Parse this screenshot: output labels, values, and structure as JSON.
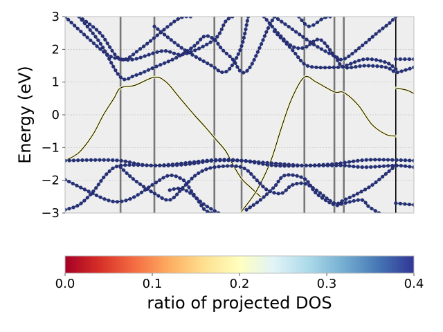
{
  "chart_data": {
    "type": "line",
    "subtype": "band-structure-with-projection",
    "title": "",
    "xlabel": "",
    "ylabel": "Energy (eV)",
    "ylim": [
      -3,
      3
    ],
    "xlim": [
      0,
      1
    ],
    "yticks": [
      -3,
      -2,
      -1,
      0,
      1,
      2,
      3
    ],
    "ytick_labels": [
      "−3",
      "−2",
      "−1",
      "0",
      "1",
      "2",
      "3"
    ],
    "grid": "horizontal dashed",
    "plot_background": "#eeeeee",
    "high_symmetry_x": [
      0.159,
      0.256,
      0.428,
      0.506,
      0.686,
      0.772,
      0.799,
      0.948
    ],
    "discontinuity_x": 0.948,
    "highlight_series": "band-projected-low",
    "series": [
      {
        "id": "c3",
        "points": [
          [
            0.04,
            3.0
          ],
          [
            0.1,
            2.5
          ],
          [
            0.159,
            1.7
          ],
          [
            0.22,
            2.05
          ],
          [
            0.32,
            2.9
          ],
          [
            0.36,
            3.0
          ]
        ]
      },
      {
        "id": "c2",
        "points": [
          [
            0.0,
            3.0
          ],
          [
            0.06,
            2.4
          ],
          [
            0.12,
            1.85
          ],
          [
            0.159,
            1.7
          ],
          [
            0.2,
            1.7
          ],
          [
            0.28,
            1.95
          ],
          [
            0.34,
            1.85
          ],
          [
            0.428,
            2.3
          ],
          [
            0.46,
            2.85
          ],
          [
            0.48,
            3.0
          ]
        ]
      },
      {
        "id": "c1",
        "points": [
          [
            0.04,
            3.0
          ],
          [
            0.1,
            2.2
          ],
          [
            0.159,
            1.15
          ],
          [
            0.2,
            1.2
          ],
          [
            0.256,
            1.45
          ],
          [
            0.32,
            1.75
          ],
          [
            0.37,
            2.1
          ],
          [
            0.4,
            2.4
          ],
          [
            0.428,
            2.3
          ],
          [
            0.45,
            2.0
          ],
          [
            0.48,
            1.7
          ],
          [
            0.506,
            1.3
          ],
          [
            0.53,
            1.45
          ],
          [
            0.56,
            2.1
          ],
          [
            0.58,
            2.6
          ],
          [
            0.6,
            3.0
          ]
        ]
      },
      {
        "id": "c1b",
        "points": [
          [
            0.256,
            2.7
          ],
          [
            0.34,
            2.0
          ],
          [
            0.42,
            1.5
          ],
          [
            0.45,
            1.3
          ],
          [
            0.475,
            1.45
          ],
          [
            0.506,
            2.1
          ],
          [
            0.525,
            3.0
          ]
        ]
      },
      {
        "id": "c2r",
        "points": [
          [
            0.57,
            3.0
          ],
          [
            0.61,
            2.5
          ],
          [
            0.65,
            2.1
          ],
          [
            0.686,
            2.05
          ],
          [
            0.73,
            2.3
          ],
          [
            0.772,
            1.8
          ],
          [
            0.8,
            1.45
          ],
          [
            0.86,
            1.5
          ],
          [
            0.92,
            1.45
          ],
          [
            0.948,
            1.3
          ],
          [
            0.97,
            1.35
          ],
          [
            1.0,
            1.45
          ]
        ]
      },
      {
        "id": "c3r",
        "points": [
          [
            0.6,
            3.0
          ],
          [
            0.64,
            2.7
          ],
          [
            0.686,
            2.35
          ],
          [
            0.72,
            2.1
          ],
          [
            0.772,
            1.8
          ],
          [
            0.799,
            1.7
          ],
          [
            0.85,
            2.1
          ],
          [
            0.9,
            2.55
          ],
          [
            0.93,
            2.8
          ],
          [
            0.948,
            3.0
          ]
        ]
      },
      {
        "id": "c4r",
        "points": [
          [
            0.67,
            3.0
          ],
          [
            0.7,
            2.7
          ],
          [
            0.74,
            2.95
          ],
          [
            0.76,
            3.0
          ]
        ]
      },
      {
        "id": "c1r",
        "points": [
          [
            0.6,
            2.55
          ],
          [
            0.65,
            2.0
          ],
          [
            0.686,
            1.55
          ],
          [
            0.72,
            1.45
          ],
          [
            0.772,
            1.45
          ],
          [
            0.799,
            1.48
          ],
          [
            0.86,
            1.7
          ],
          [
            0.92,
            1.6
          ],
          [
            0.948,
            1.4
          ]
        ]
      },
      {
        "id": "c_flat",
        "points": [
          [
            0.948,
            1.7
          ],
          [
            1.0,
            1.7
          ]
        ]
      },
      {
        "id": "band-projected-low",
        "points": [
          [
            0.0,
            -1.4
          ],
          [
            0.04,
            -1.15
          ],
          [
            0.08,
            -0.6
          ],
          [
            0.11,
            0.0
          ],
          [
            0.14,
            0.5
          ],
          [
            0.159,
            0.82
          ],
          [
            0.2,
            0.9
          ],
          [
            0.256,
            1.15
          ],
          [
            0.29,
            1.0
          ],
          [
            0.33,
            0.5
          ],
          [
            0.37,
            0.0
          ],
          [
            0.4,
            -0.35
          ],
          [
            0.428,
            -0.7
          ],
          [
            0.46,
            -1.1
          ],
          [
            0.48,
            -1.5
          ],
          [
            0.506,
            -1.95
          ],
          [
            0.53,
            -2.2
          ],
          [
            0.56,
            -2.5
          ]
        ]
      },
      {
        "id": "band-projected-low-r",
        "points": [
          [
            0.506,
            -2.95
          ],
          [
            0.55,
            -2.3
          ],
          [
            0.59,
            -1.4
          ],
          [
            0.62,
            -0.4
          ],
          [
            0.65,
            0.5
          ],
          [
            0.686,
            1.15
          ],
          [
            0.72,
            1.0
          ],
          [
            0.772,
            0.7
          ],
          [
            0.799,
            0.68
          ],
          [
            0.84,
            0.3
          ],
          [
            0.88,
            -0.3
          ],
          [
            0.92,
            -0.6
          ],
          [
            0.948,
            -0.65
          ]
        ]
      },
      {
        "id": "band-right-segment",
        "points": [
          [
            0.948,
            0.82
          ],
          [
            0.98,
            0.75
          ],
          [
            1.0,
            0.65
          ]
        ]
      },
      {
        "id": "v_low1",
        "points": [
          [
            0.0,
            -1.4
          ],
          [
            0.08,
            -1.38
          ],
          [
            0.159,
            -1.4
          ],
          [
            0.256,
            -1.55
          ],
          [
            0.428,
            -1.38
          ],
          [
            0.506,
            -1.4
          ],
          [
            0.6,
            -1.55
          ],
          [
            0.686,
            -1.55
          ],
          [
            0.772,
            -1.5
          ],
          [
            0.86,
            -1.38
          ],
          [
            0.948,
            -1.38
          ],
          [
            1.0,
            -1.4
          ]
        ]
      },
      {
        "id": "v_low2",
        "points": [
          [
            0.0,
            -1.98
          ],
          [
            0.06,
            -2.3
          ],
          [
            0.12,
            -2.6
          ],
          [
            0.159,
            -2.65
          ],
          [
            0.2,
            -2.5
          ],
          [
            0.256,
            -2.1
          ],
          [
            0.3,
            -1.85
          ],
          [
            0.34,
            -2.0
          ],
          [
            0.36,
            -2.3
          ],
          [
            0.38,
            -2.6
          ],
          [
            0.4,
            -2.9
          ],
          [
            0.42,
            -3.0
          ]
        ]
      },
      {
        "id": "v_low3",
        "points": [
          [
            0.0,
            -2.9
          ],
          [
            0.04,
            -2.75
          ],
          [
            0.08,
            -2.35
          ],
          [
            0.12,
            -1.8
          ],
          [
            0.159,
            -1.55
          ],
          [
            0.256,
            -1.55
          ],
          [
            0.3,
            -1.55
          ],
          [
            0.36,
            -1.5
          ],
          [
            0.428,
            -1.4
          ],
          [
            0.506,
            -1.4
          ],
          [
            0.56,
            -1.45
          ],
          [
            0.62,
            -1.5
          ],
          [
            0.686,
            -1.55
          ],
          [
            0.772,
            -1.55
          ],
          [
            0.8,
            -1.55
          ],
          [
            0.86,
            -1.6
          ],
          [
            0.948,
            -1.55
          ],
          [
            1.0,
            -1.6
          ]
        ]
      },
      {
        "id": "v_low4",
        "points": [
          [
            0.159,
            -1.6
          ],
          [
            0.2,
            -2.0
          ],
          [
            0.256,
            -2.4
          ],
          [
            0.3,
            -2.6
          ],
          [
            0.34,
            -2.2
          ],
          [
            0.38,
            -1.8
          ],
          [
            0.428,
            -1.6
          ],
          [
            0.506,
            -1.6
          ],
          [
            0.55,
            -2.0
          ],
          [
            0.58,
            -2.3
          ],
          [
            0.62,
            -2.4
          ],
          [
            0.65,
            -2.15
          ],
          [
            0.686,
            -2.1
          ],
          [
            0.72,
            -2.3
          ],
          [
            0.772,
            -2.7
          ],
          [
            0.8,
            -2.6
          ],
          [
            0.84,
            -2.4
          ],
          [
            0.88,
            -2.15
          ],
          [
            0.92,
            -1.8
          ],
          [
            0.948,
            -1.55
          ]
        ]
      },
      {
        "id": "v_low5",
        "points": [
          [
            0.3,
            -2.3
          ],
          [
            0.33,
            -2.25
          ],
          [
            0.36,
            -2.4
          ],
          [
            0.4,
            -2.75
          ],
          [
            0.44,
            -3.0
          ]
        ]
      },
      {
        "id": "v_low6",
        "points": [
          [
            0.52,
            -2.9
          ],
          [
            0.56,
            -2.6
          ],
          [
            0.6,
            -2.2
          ],
          [
            0.63,
            -1.85
          ],
          [
            0.686,
            -1.95
          ],
          [
            0.72,
            -2.4
          ],
          [
            0.772,
            -2.75
          ],
          [
            0.8,
            -2.7
          ],
          [
            0.85,
            -2.6
          ],
          [
            0.87,
            -2.8
          ],
          [
            0.9,
            -3.0
          ]
        ]
      },
      {
        "id": "v_low7",
        "points": [
          [
            0.948,
            -2.7
          ],
          [
            1.0,
            -2.75
          ]
        ]
      }
    ],
    "colorbar": {
      "label": "ratio of projected DOS",
      "min": 0.0,
      "max": 0.4,
      "ticks": [
        "0.0",
        "0.1",
        "0.2",
        "0.3",
        "0.4"
      ],
      "colormap": "RdYlBu",
      "colors": [
        "#a50026",
        "#d73027",
        "#f46d43",
        "#fdae61",
        "#fee090",
        "#ffffbf",
        "#e0f3f8",
        "#abd9e9",
        "#74add1",
        "#4575b4",
        "#313695"
      ]
    }
  }
}
